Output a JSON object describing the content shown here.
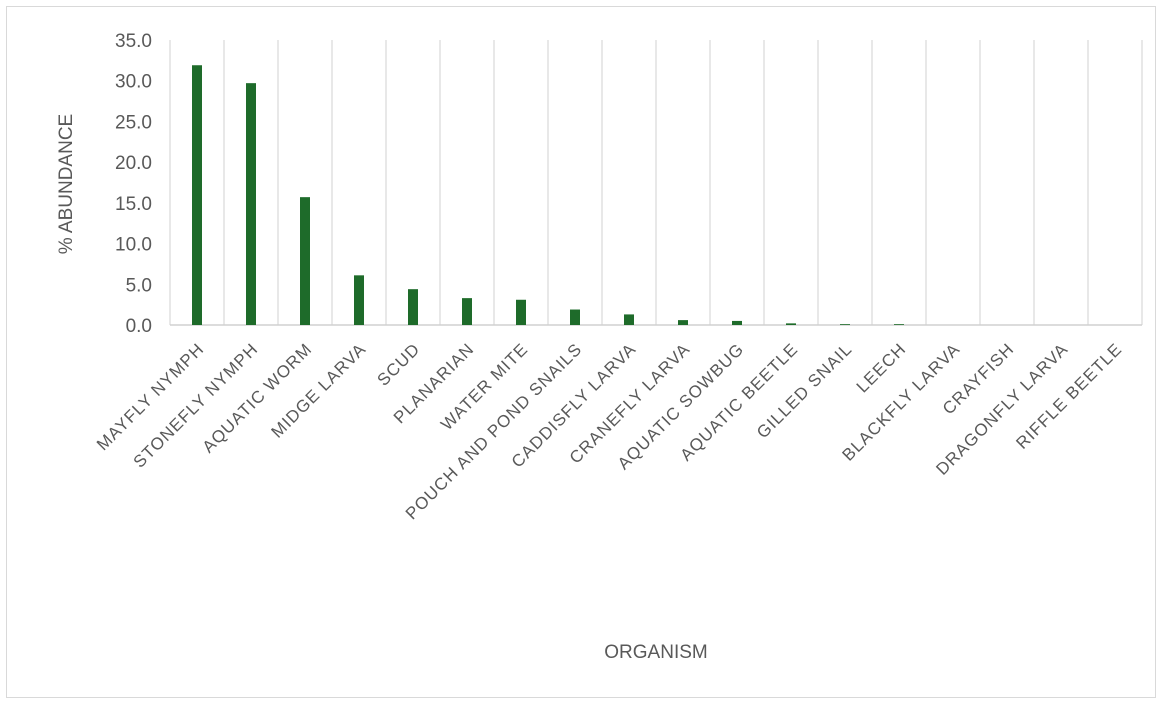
{
  "chart_data": {
    "type": "bar",
    "title": "",
    "xlabel": "ORGANISM",
    "ylabel": "% ABUNDANCE",
    "ylim": [
      0,
      35
    ],
    "yticks": [
      "0.0",
      "5.0",
      "10.0",
      "15.0",
      "20.0",
      "25.0",
      "30.0",
      "35.0"
    ],
    "grid": "vertical",
    "bar_color": "#1e6b2a",
    "categories": [
      "MAYFLY NYMPH",
      "STONEFLY NYMPH",
      "AQUATIC WORM",
      "MIDGE LARVA",
      "SCUD",
      "PLANARIAN",
      "WATER MITE",
      "POUCH AND POND SNAILS",
      "CADDISFLY LARVA",
      "CRANEFLY LARVA",
      "AQUATIC SOWBUG",
      "AQUATIC BEETLE",
      "GILLED SNAIL",
      "LEECH",
      "BLACKFLY LARVA",
      "CRAYFISH",
      "DRAGONFLY LARVA",
      "RIFFLE BEETLE"
    ],
    "values": [
      31.9,
      29.7,
      15.7,
      6.1,
      4.4,
      3.3,
      3.1,
      1.9,
      1.3,
      0.6,
      0.5,
      0.2,
      0.1,
      0.1,
      0.0,
      0.0,
      0.0,
      0.0
    ]
  }
}
